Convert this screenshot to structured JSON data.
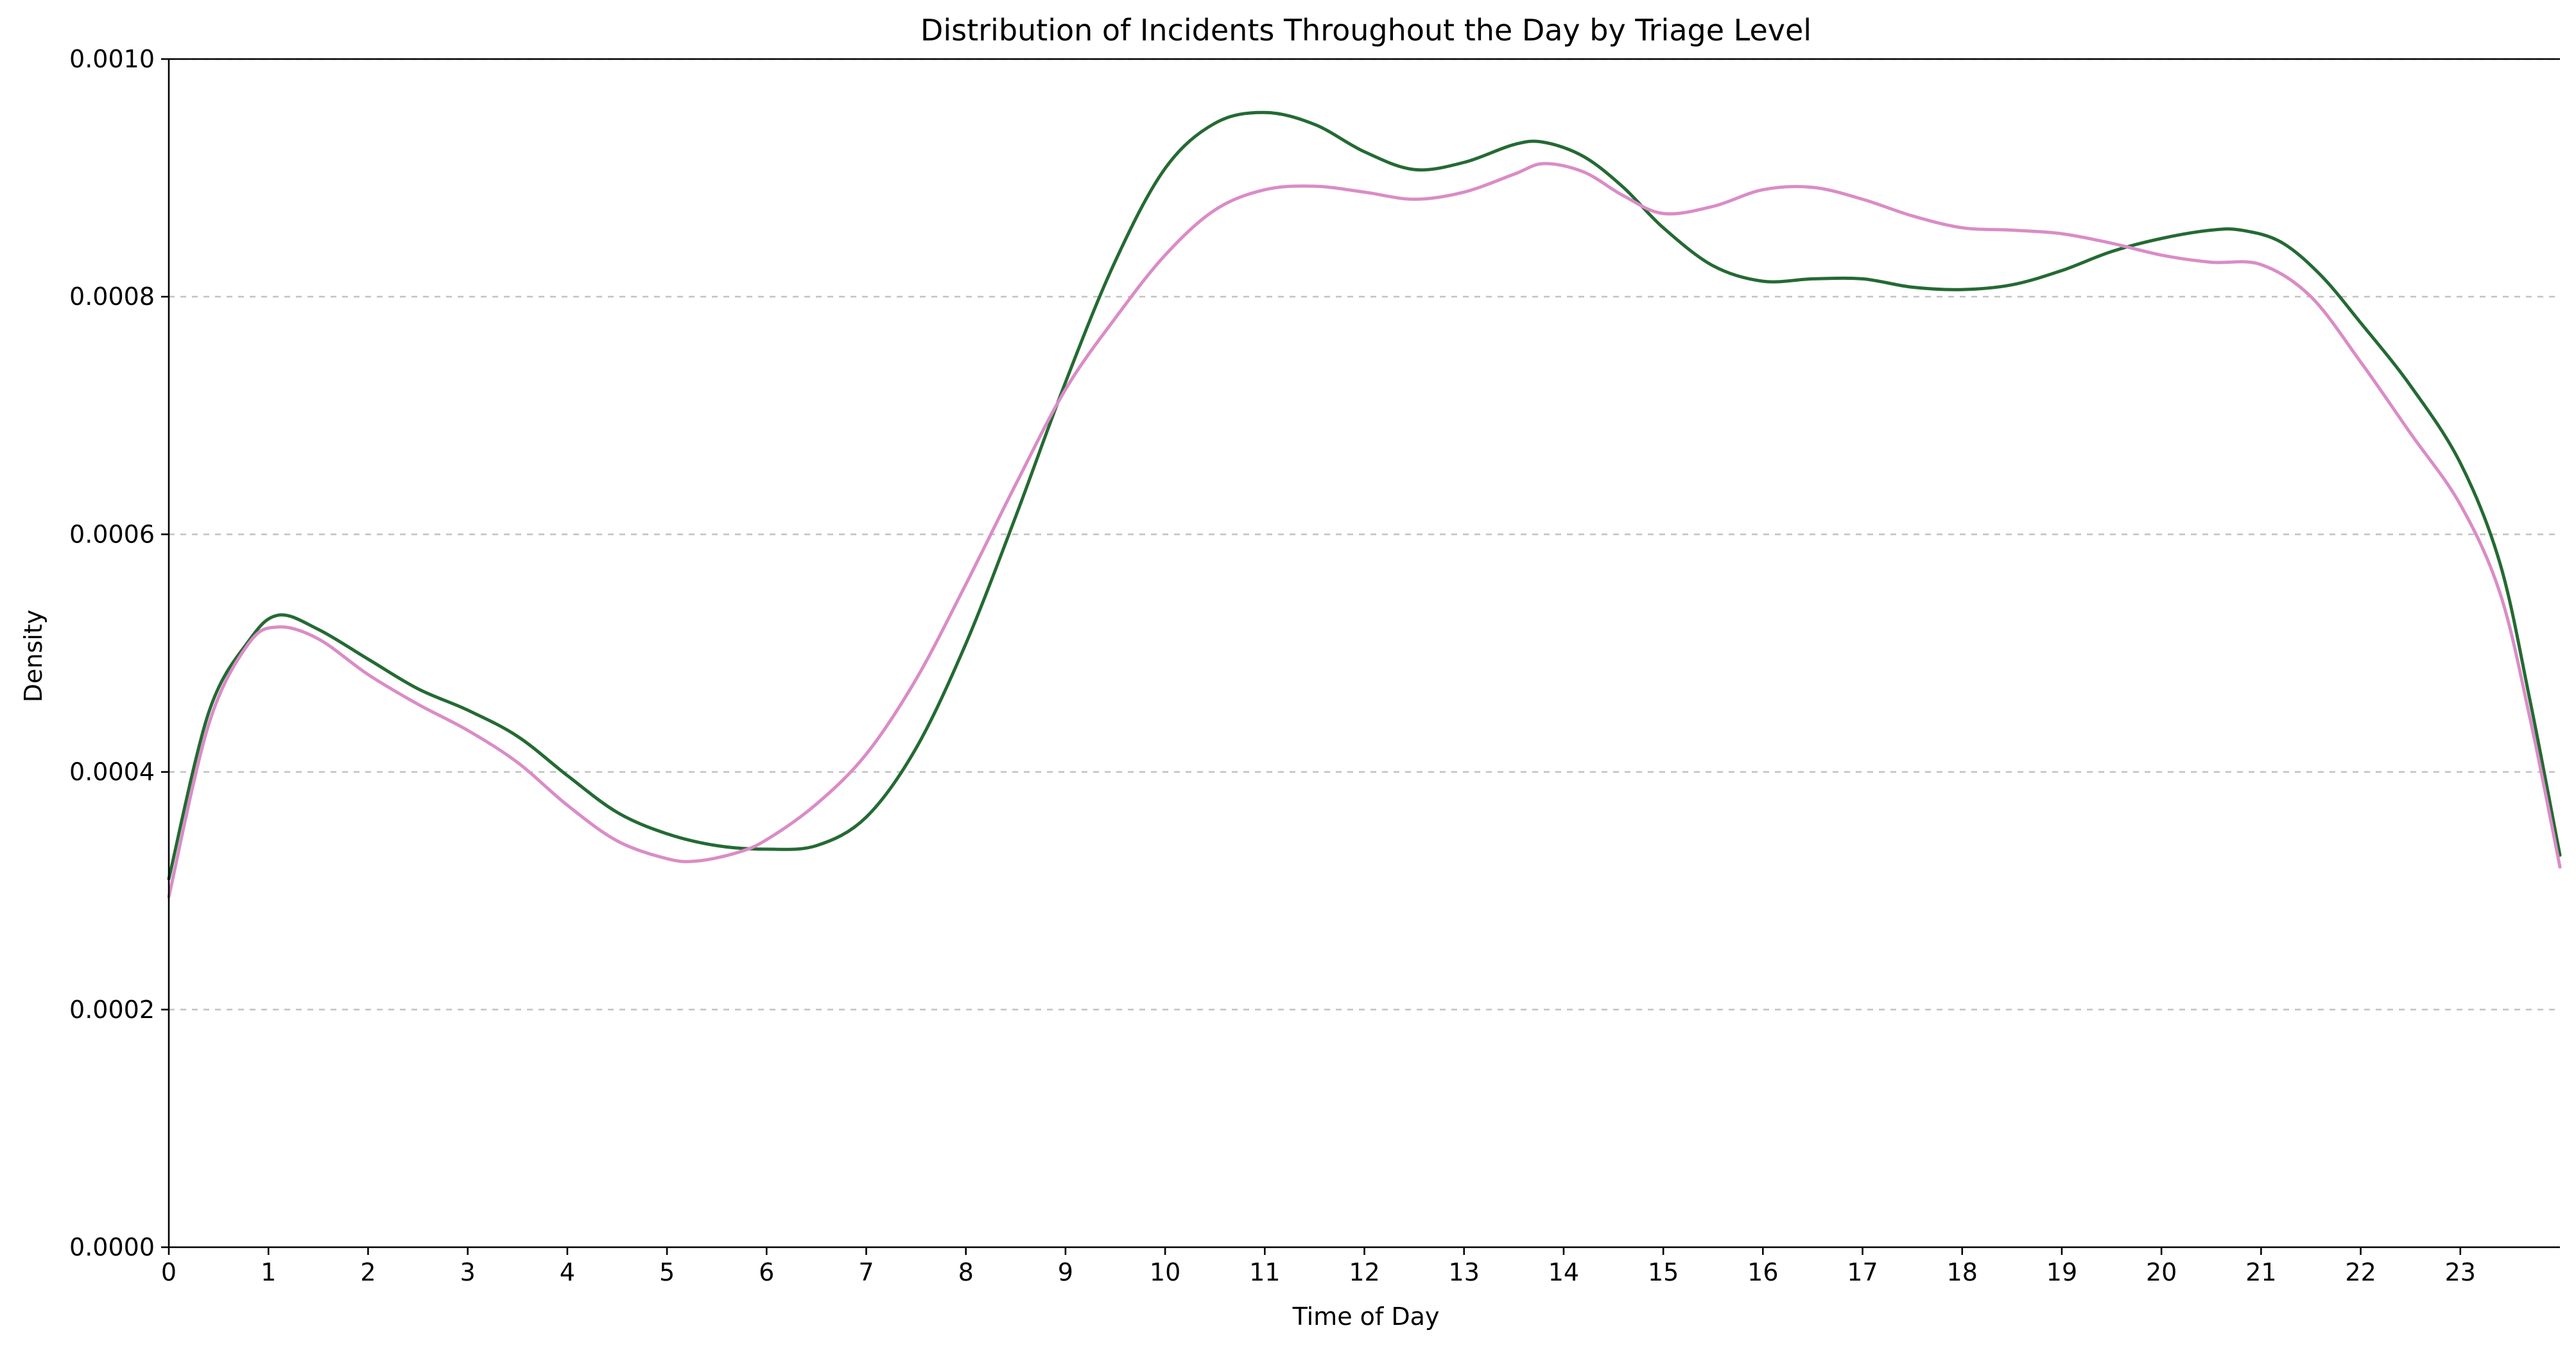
{
  "chart_data": {
    "type": "line",
    "title": "Distribution of Incidents Throughout the Day by Triage Level",
    "xlabel": "Time of Day",
    "ylabel": "Density",
    "xlim": [
      0,
      24
    ],
    "ylim": [
      0,
      0.001
    ],
    "xticks": [
      0,
      1,
      2,
      3,
      4,
      5,
      6,
      7,
      8,
      9,
      10,
      11,
      12,
      13,
      14,
      15,
      16,
      17,
      18,
      19,
      20,
      21,
      22,
      23
    ],
    "xtick_labels": [
      "0",
      "1",
      "2",
      "3",
      "4",
      "5",
      "6",
      "7",
      "8",
      "9",
      "10",
      "11",
      "12",
      "13",
      "14",
      "15",
      "16",
      "17",
      "18",
      "19",
      "20",
      "21",
      "22",
      "23"
    ],
    "yticks": [
      0,
      0.0002,
      0.0004,
      0.0006,
      0.0008,
      0.001
    ],
    "ytick_labels": [
      "0.0000",
      "0.0002",
      "0.0004",
      "0.0006",
      "0.0008",
      "0.0010"
    ],
    "grid": "horizontal dashed",
    "legend": "none",
    "series": [
      {
        "color": "#246a33",
        "x": [
          0,
          0.4,
          0.8,
          1.1,
          1.5,
          2,
          2.5,
          3,
          3.5,
          4,
          4.5,
          5,
          5.5,
          6,
          6.5,
          7,
          7.5,
          8,
          8.5,
          9,
          9.5,
          10,
          10.5,
          11,
          11.5,
          12,
          12.5,
          13,
          13.5,
          13.8,
          14.2,
          14.6,
          15,
          15.5,
          16,
          16.5,
          17,
          17.5,
          18,
          18.5,
          19,
          19.5,
          20,
          20.5,
          20.8,
          21.2,
          21.6,
          22,
          22.5,
          23,
          23.4,
          23.7,
          24
        ],
        "values": [
          0.00031,
          0.00045,
          0.00051,
          0.000532,
          0.00052,
          0.000495,
          0.00047,
          0.000452,
          0.00043,
          0.000397,
          0.000366,
          0.000348,
          0.000338,
          0.000335,
          0.000338,
          0.000362,
          0.00042,
          0.000508,
          0.000615,
          0.000728,
          0.00083,
          0.000908,
          0.000946,
          0.000955,
          0.000945,
          0.000922,
          0.000907,
          0.000913,
          0.000928,
          0.00093,
          0.000918,
          0.000892,
          0.000858,
          0.000826,
          0.000813,
          0.000815,
          0.000815,
          0.000808,
          0.000806,
          0.00081,
          0.000822,
          0.000838,
          0.000849,
          0.000856,
          0.000856,
          0.000846,
          0.000818,
          0.000778,
          0.000725,
          0.00066,
          0.000575,
          0.00046,
          0.00033
        ]
      },
      {
        "color": "#da8cc6",
        "x": [
          0,
          0.4,
          0.8,
          1.1,
          1.5,
          2,
          2.5,
          3,
          3.5,
          4,
          4.5,
          5,
          5.3,
          5.7,
          6,
          6.5,
          7,
          7.5,
          8,
          8.5,
          9,
          9.5,
          10,
          10.5,
          11,
          11.5,
          12,
          12.5,
          13,
          13.5,
          13.8,
          14.2,
          14.6,
          15,
          15.5,
          16,
          16.5,
          17,
          17.5,
          18,
          18.5,
          19,
          19.5,
          20,
          20.5,
          21,
          21.5,
          22,
          22.5,
          23,
          23.4,
          23.7,
          24
        ],
        "values": [
          0.000295,
          0.00044,
          0.000508,
          0.000522,
          0.000512,
          0.000482,
          0.000457,
          0.000435,
          0.000408,
          0.000372,
          0.000342,
          0.000327,
          0.000325,
          0.000332,
          0.000343,
          0.000373,
          0.000415,
          0.000478,
          0.000558,
          0.000642,
          0.000722,
          0.000782,
          0.000835,
          0.000873,
          0.00089,
          0.000893,
          0.000888,
          0.000882,
          0.000888,
          0.000903,
          0.000912,
          0.000905,
          0.000885,
          0.00087,
          0.000876,
          0.00089,
          0.000892,
          0.000882,
          0.000868,
          0.000858,
          0.000856,
          0.000853,
          0.000845,
          0.000835,
          0.000829,
          0.000827,
          0.0008,
          0.000745,
          0.000685,
          0.000625,
          0.00055,
          0.000445,
          0.00032
        ]
      }
    ]
  }
}
